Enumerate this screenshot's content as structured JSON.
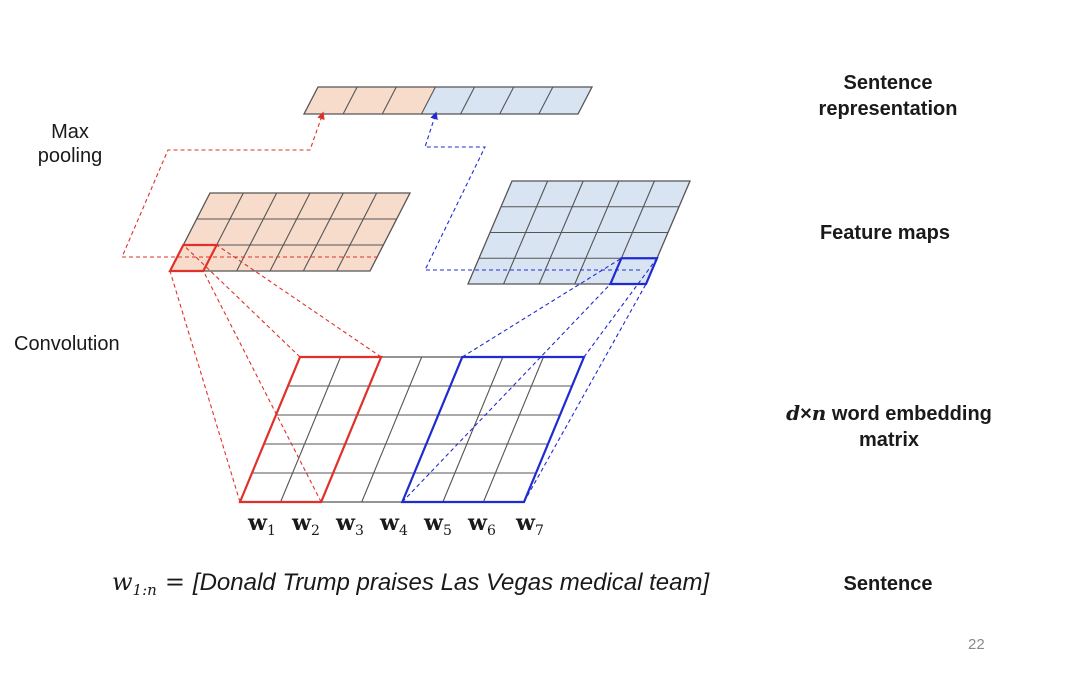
{
  "labels": {
    "max_pooling": "Max pooling",
    "convolution": "Convolution",
    "sentence_representation": "Sentence representation",
    "feature_maps": "Feature maps",
    "embedding_var_d": "d",
    "embedding_times": "×",
    "embedding_var_n": "n",
    "embedding_rest": " word embedding matrix",
    "sentence": "Sentence"
  },
  "words": [
    {
      "name": "w",
      "sub": "1"
    },
    {
      "name": "w",
      "sub": "2"
    },
    {
      "name": "w",
      "sub": "3"
    },
    {
      "name": "w",
      "sub": "4"
    },
    {
      "name": "w",
      "sub": "5"
    },
    {
      "name": "w",
      "sub": "6"
    },
    {
      "name": "w",
      "sub": "7"
    }
  ],
  "sentence_equation": {
    "var": "w",
    "subscript": "1:n",
    "equals": "=",
    "text": "[Donald Trump praises Las Vegas medical team]"
  },
  "page_number": "22",
  "colors": {
    "red": "#e0302a",
    "blue": "#1f2bd0",
    "orange_fill": "#f8dccb",
    "blue_fill": "#d9e4f3",
    "grid": "#555555"
  }
}
